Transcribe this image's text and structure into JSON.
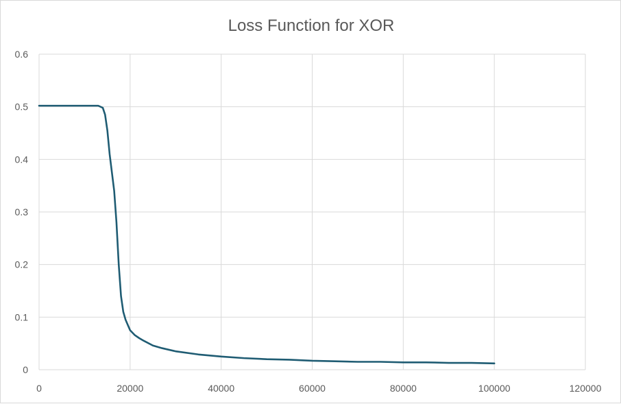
{
  "chart_data": {
    "type": "line",
    "title": "Loss Function for XOR",
    "xlabel": "",
    "ylabel": "",
    "xlim": [
      0,
      120000
    ],
    "ylim": [
      0,
      0.6
    ],
    "x_ticks": [
      0,
      20000,
      40000,
      60000,
      80000,
      100000,
      120000
    ],
    "y_ticks": [
      0,
      0.1,
      0.2,
      0.3,
      0.4,
      0.5,
      0.6
    ],
    "x_tick_labels": [
      "0",
      "20000",
      "40000",
      "60000",
      "80000",
      "100000",
      "120000"
    ],
    "y_tick_labels": [
      "0",
      "0.1",
      "0.2",
      "0.3",
      "0.4",
      "0.5",
      "0.6"
    ],
    "grid": true,
    "legend": "none",
    "series": [
      {
        "color": "#1f5c73",
        "x": [
          0,
          5000,
          10000,
          13000,
          14000,
          14500,
          15000,
          15500,
          16000,
          16500,
          17000,
          17500,
          18000,
          18500,
          19000,
          19500,
          20000,
          21000,
          22000,
          23000,
          25000,
          27000,
          30000,
          35000,
          40000,
          45000,
          50000,
          55000,
          60000,
          65000,
          70000,
          75000,
          80000,
          85000,
          90000,
          95000,
          100000
        ],
        "y": [
          0.502,
          0.502,
          0.502,
          0.502,
          0.498,
          0.485,
          0.455,
          0.41,
          0.375,
          0.34,
          0.28,
          0.2,
          0.14,
          0.11,
          0.095,
          0.085,
          0.075,
          0.066,
          0.06,
          0.055,
          0.046,
          0.041,
          0.035,
          0.029,
          0.025,
          0.022,
          0.02,
          0.019,
          0.017,
          0.016,
          0.015,
          0.015,
          0.014,
          0.014,
          0.013,
          0.013,
          0.012
        ]
      }
    ]
  }
}
